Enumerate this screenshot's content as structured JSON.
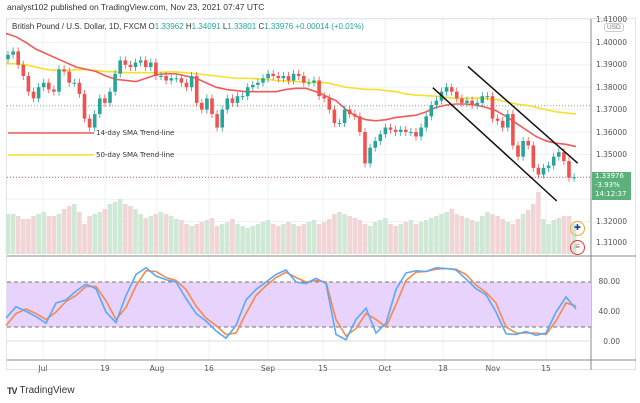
{
  "header": {
    "published": "analyst102 published on TradingView.com, Nov 23, 2021 07:47 UTC"
  },
  "symbol": {
    "name": "British Pound / U.S. Dollar, 1D, FXCM",
    "open_label": "O",
    "open": "1.33962",
    "high_label": "H",
    "high": "1.34091",
    "low_label": "L",
    "low": "1.33801",
    "close_label": "C",
    "close": "1.33976",
    "change": "+0.00014 (+0.01%)"
  },
  "price_axis": {
    "currency": "USD",
    "ticks": [
      "1.41000",
      "1.40000",
      "1.39000",
      "1.38000",
      "1.37000",
      "1.36000",
      "1.35000",
      "1.32000",
      "1.31000"
    ],
    "last_price": "1.33976",
    "last_change": "-3.93%",
    "countdown": "14:12:37"
  },
  "stoch_axis": {
    "ticks": [
      "80.00",
      "40.00",
      "0.00"
    ]
  },
  "time_axis": {
    "ticks": [
      "Jul",
      "19",
      "Aug",
      "16",
      "Sep",
      "15",
      "Oct",
      "18",
      "Nov",
      "15"
    ]
  },
  "legend": {
    "sma14": "14-day SMA Trend-line",
    "sma50": "50-day SMA Trend-line"
  },
  "colors": {
    "up": "#26a69a",
    "down": "#ef5350",
    "sma14": "#f05a5a",
    "sma50": "#f5e12a",
    "stoch_k": "#5aa9f7",
    "stoch_d": "#f5894f",
    "stoch_band": "#e7d3fb"
  },
  "icons": {
    "gbp": "uk-flag-icon",
    "usd": "us-flag-icon"
  },
  "footer": {
    "brand": "TradingView"
  },
  "chart_data": [
    {
      "type": "candlestick",
      "ylim": [
        1.3,
        1.41
      ],
      "closes": [
        1.3945,
        1.396,
        1.39,
        1.385,
        1.378,
        1.375,
        1.38,
        1.382,
        1.379,
        1.378,
        1.388,
        1.387,
        1.382,
        1.382,
        1.377,
        1.366,
        1.362,
        1.368,
        1.375,
        1.373,
        1.378,
        1.386,
        1.392,
        1.39,
        1.389,
        1.391,
        1.392,
        1.389,
        1.391,
        1.385,
        1.385,
        1.383,
        1.384,
        1.384,
        1.382,
        1.38,
        1.385,
        1.373,
        1.37,
        1.375,
        1.368,
        1.362,
        1.37,
        1.375,
        1.373,
        1.376,
        1.376,
        1.38,
        1.381,
        1.382,
        1.384,
        1.386,
        1.385,
        1.384,
        1.385,
        1.383,
        1.386,
        1.385,
        1.382,
        1.382,
        1.383,
        1.376,
        1.375,
        1.37,
        1.364,
        1.364,
        1.37,
        1.368,
        1.367,
        1.36,
        1.346,
        1.353,
        1.356,
        1.359,
        1.362,
        1.361,
        1.36,
        1.361,
        1.36,
        1.36,
        1.358,
        1.362,
        1.367,
        1.372,
        1.374,
        1.378,
        1.38,
        1.378,
        1.375,
        1.373,
        1.374,
        1.372,
        1.373,
        1.376,
        1.376,
        1.366,
        1.365,
        1.362,
        1.368,
        1.354,
        1.349,
        1.356,
        1.354,
        1.344,
        1.341,
        1.344,
        1.345,
        1.349,
        1.351,
        1.347,
        1.33962,
        1.33976
      ],
      "volumes": [
        40,
        40,
        38,
        35,
        35,
        38,
        40,
        42,
        38,
        38,
        40,
        45,
        48,
        50,
        42,
        30,
        38,
        40,
        42,
        45,
        50,
        52,
        55,
        50,
        48,
        45,
        40,
        36,
        38,
        40,
        42,
        40,
        38,
        35,
        34,
        30,
        28,
        30,
        32,
        34,
        36,
        28,
        30,
        32,
        35,
        30,
        28,
        26,
        28,
        30,
        32,
        34,
        30,
        28,
        30,
        32,
        30,
        28,
        30,
        32,
        34,
        30,
        32,
        35,
        40,
        42,
        40,
        38,
        36,
        34,
        30,
        28,
        32,
        34,
        36,
        30,
        28,
        30,
        32,
        34,
        30,
        32,
        34,
        36,
        38,
        40,
        42,
        45,
        40,
        38,
        36,
        34,
        32,
        38,
        42,
        40,
        38,
        35,
        32,
        30,
        35,
        40,
        44,
        50,
        62,
        35,
        30,
        34,
        36,
        38,
        38,
        30
      ],
      "sma14": [
        1.404,
        1.4025,
        1.4,
        1.397,
        1.395,
        1.393,
        1.391,
        1.389,
        1.388,
        1.387,
        1.385,
        1.3835,
        1.383,
        1.3825,
        1.384,
        1.3855,
        1.386,
        1.386,
        1.385,
        1.384,
        1.382,
        1.38,
        1.379,
        1.3785,
        1.378,
        1.378,
        1.378,
        1.378,
        1.379,
        1.3795,
        1.3795,
        1.378,
        1.376,
        1.374,
        1.37,
        1.367,
        1.3655,
        1.365,
        1.3655,
        1.3665,
        1.367,
        1.3675,
        1.369,
        1.371,
        1.372,
        1.3725,
        1.3725,
        1.372,
        1.371,
        1.3695,
        1.367,
        1.364,
        1.361,
        1.358,
        1.356,
        1.355,
        1.3545,
        1.3535
      ],
      "sma50": [
        1.3905,
        1.3905,
        1.39,
        1.389,
        1.388,
        1.3875,
        1.3875,
        1.3878,
        1.3878,
        1.3875,
        1.387,
        1.3868,
        1.3865,
        1.3865,
        1.3865,
        1.3865,
        1.3868,
        1.3868,
        1.3865,
        1.386,
        1.3855,
        1.385,
        1.3845,
        1.384,
        1.384,
        1.3838,
        1.3835,
        1.383,
        1.3828,
        1.3825,
        1.3823,
        1.382,
        1.382,
        1.381,
        1.38,
        1.3795,
        1.379,
        1.379,
        1.3785,
        1.378,
        1.377,
        1.3765,
        1.3762,
        1.376,
        1.3755,
        1.375,
        1.375,
        1.3752,
        1.375,
        1.3745,
        1.3735,
        1.3725,
        1.372,
        1.371,
        1.37,
        1.369,
        1.3685,
        1.368
      ],
      "channel": [
        {
          "from": [
            83.3,
            1.3798
          ],
          "to": [
            107.6,
            1.3292
          ]
        },
        {
          "from": [
            90.2,
            1.3892
          ],
          "to": [
            111.7,
            1.3461
          ]
        }
      ],
      "reference_line": 1.3717
    },
    {
      "type": "line",
      "ylim": [
        0,
        100
      ],
      "band": [
        20,
        80
      ],
      "k": [
        32,
        47,
        41,
        34,
        25,
        52,
        56,
        68,
        77,
        71,
        40,
        26,
        62,
        90,
        99,
        88,
        83,
        80,
        58,
        38,
        28,
        15,
        5,
        22,
        56,
        70,
        80,
        90,
        96,
        80,
        78,
        85,
        78,
        10,
        3,
        30,
        45,
        12,
        25,
        70,
        92,
        95,
        94,
        99,
        98,
        96,
        84,
        71,
        63,
        40,
        11,
        10,
        14,
        9,
        12,
        40,
        60,
        44
      ],
      "d": [
        22,
        38,
        44,
        38,
        30,
        40,
        54,
        62,
        74,
        74,
        55,
        30,
        46,
        75,
        95,
        94,
        86,
        82,
        70,
        48,
        32,
        22,
        10,
        12,
        38,
        62,
        75,
        86,
        93,
        86,
        80,
        82,
        80,
        30,
        8,
        18,
        38,
        30,
        20,
        50,
        82,
        93,
        94,
        97,
        98,
        97,
        90,
        76,
        66,
        52,
        20,
        12,
        12,
        12,
        10,
        28,
        52,
        48
      ]
    }
  ]
}
